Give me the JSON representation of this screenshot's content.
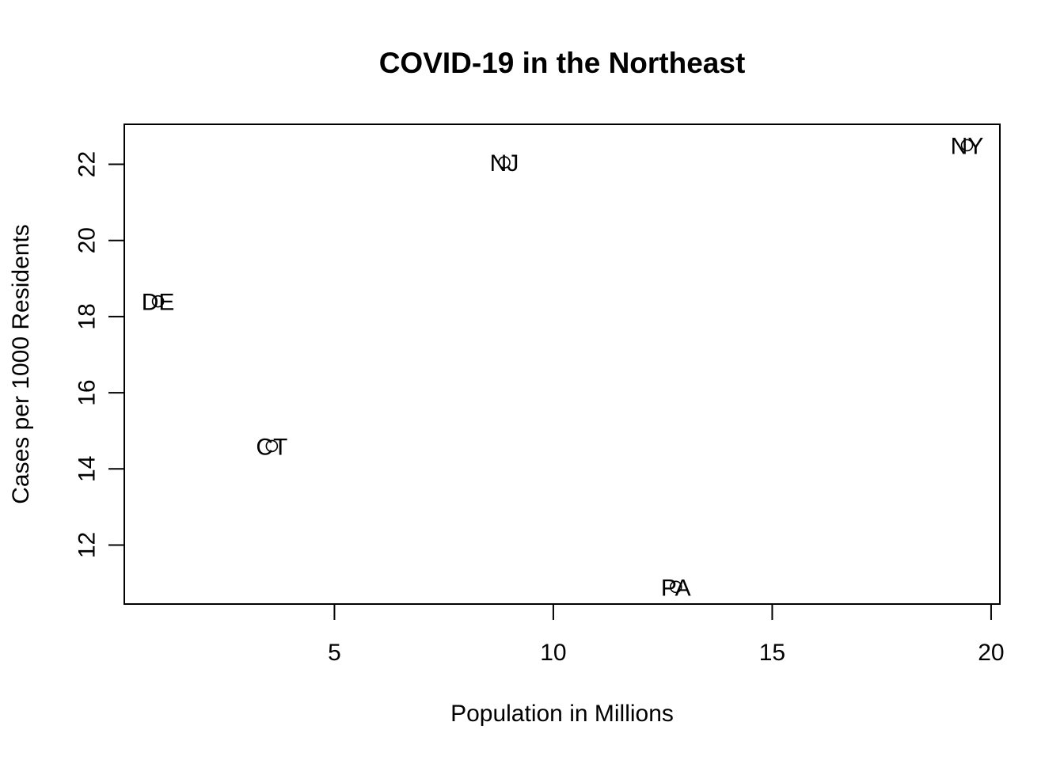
{
  "chart_data": {
    "type": "scatter",
    "title": "COVID-19 in the Northeast",
    "xlabel": "Population in Millions",
    "ylabel": "Cases per 1000 Residents",
    "xlim": [
      0.2,
      20.2
    ],
    "ylim": [
      10.45,
      23.05
    ],
    "x_ticks": [
      5,
      10,
      15,
      20
    ],
    "y_ticks": [
      12,
      14,
      16,
      18,
      20,
      22
    ],
    "x_tick_labels": [
      "5",
      "10",
      "15",
      "20"
    ],
    "y_tick_labels": [
      "12",
      "14",
      "16",
      "18",
      "20",
      "22"
    ],
    "marker": "open-circle",
    "grid": false,
    "points": [
      {
        "label": "NY",
        "x": 19.45,
        "y": 22.5
      },
      {
        "label": "NJ",
        "x": 8.88,
        "y": 22.05
      },
      {
        "label": "DE",
        "x": 0.97,
        "y": 18.4
      },
      {
        "label": "CT",
        "x": 3.57,
        "y": 14.6
      },
      {
        "label": "PA",
        "x": 12.8,
        "y": 10.9
      }
    ]
  }
}
